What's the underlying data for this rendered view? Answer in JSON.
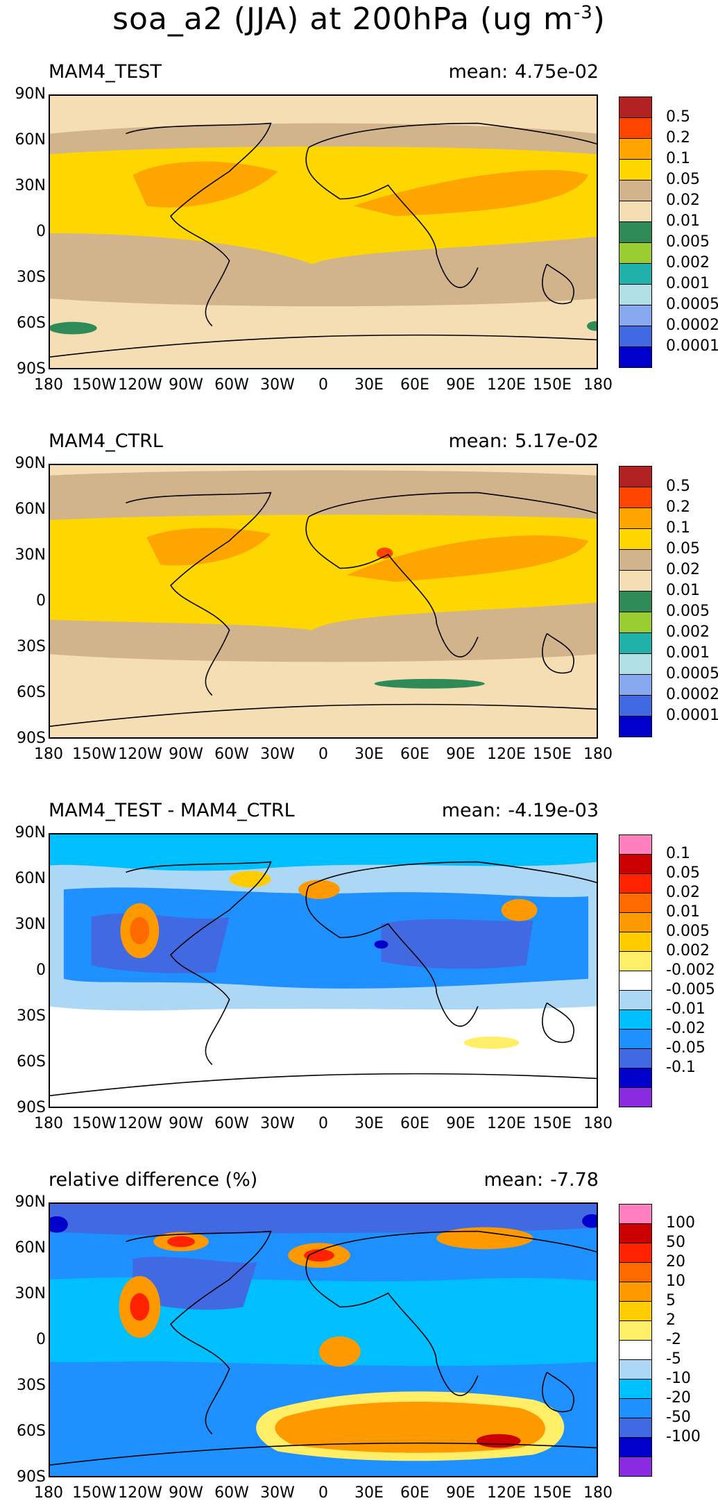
{
  "figure": {
    "title_main": "soa_a2 (JJA) at 200hPa (ug m",
    "title_exp": "-3",
    "title_close": ")"
  },
  "axes": {
    "y_ticks": [
      "90N",
      "60N",
      "30N",
      "0",
      "30S",
      "60S",
      "90S"
    ],
    "x_ticks": [
      "180",
      "150W",
      "120W",
      "90W",
      "60W",
      "30W",
      "0",
      "30E",
      "60E",
      "90E",
      "120E",
      "150E",
      "180"
    ]
  },
  "panels": [
    {
      "title": "MAM4_TEST",
      "mean_label": "mean:",
      "mean_value": "4.75e-02",
      "colorbar": {
        "labels": [
          "0.5",
          "0.2",
          "0.1",
          "0.05",
          "0.02",
          "0.01",
          "0.005",
          "0.002",
          "0.001",
          "0.0005",
          "0.0002",
          "0.0001"
        ],
        "colors": [
          "#b22222",
          "#ff4500",
          "#ffa500",
          "#ffd700",
          "#d2b48c",
          "#f5deb3",
          "#2e8b57",
          "#9acd32",
          "#20b2aa",
          "#b0e0e6",
          "#87a9f0",
          "#4169e1",
          "#0000cd"
        ]
      }
    },
    {
      "title": "MAM4_CTRL",
      "mean_label": "mean:",
      "mean_value": "5.17e-02",
      "colorbar": {
        "labels": [
          "0.5",
          "0.2",
          "0.1",
          "0.05",
          "0.02",
          "0.01",
          "0.005",
          "0.002",
          "0.001",
          "0.0005",
          "0.0002",
          "0.0001"
        ],
        "colors": [
          "#b22222",
          "#ff4500",
          "#ffa500",
          "#ffd700",
          "#d2b48c",
          "#f5deb3",
          "#2e8b57",
          "#9acd32",
          "#20b2aa",
          "#b0e0e6",
          "#87a9f0",
          "#4169e1",
          "#0000cd"
        ]
      }
    },
    {
      "title": "MAM4_TEST - MAM4_CTRL",
      "mean_label": "mean:",
      "mean_value": "-4.19e-03",
      "colorbar": {
        "labels": [
          "0.1",
          "0.05",
          "0.02",
          "0.01",
          "0.005",
          "0.002",
          "-0.002",
          "-0.005",
          "-0.01",
          "-0.02",
          "-0.05",
          "-0.1"
        ],
        "colors": [
          "#ff7fbf",
          "#cc0000",
          "#ff2200",
          "#ff6a00",
          "#ff9900",
          "#ffcc00",
          "#ffee66",
          "#ffffff",
          "#add8f5",
          "#00bfff",
          "#1e90ff",
          "#4169e1",
          "#0000cd",
          "#8a2be2"
        ]
      }
    },
    {
      "title": "relative difference (%)",
      "mean_label": "mean:",
      "mean_value": "-7.78",
      "colorbar": {
        "labels": [
          "100",
          "50",
          "20",
          "10",
          "5",
          "2",
          "-2",
          "-5",
          "-10",
          "-20",
          "-50",
          "-100"
        ],
        "colors": [
          "#ff7fbf",
          "#cc0000",
          "#ff2200",
          "#ff6a00",
          "#ff9900",
          "#ffcc00",
          "#ffee66",
          "#ffffff",
          "#add8f5",
          "#00bfff",
          "#1e90ff",
          "#4169e1",
          "#0000cd",
          "#8a2be2"
        ]
      }
    }
  ]
}
